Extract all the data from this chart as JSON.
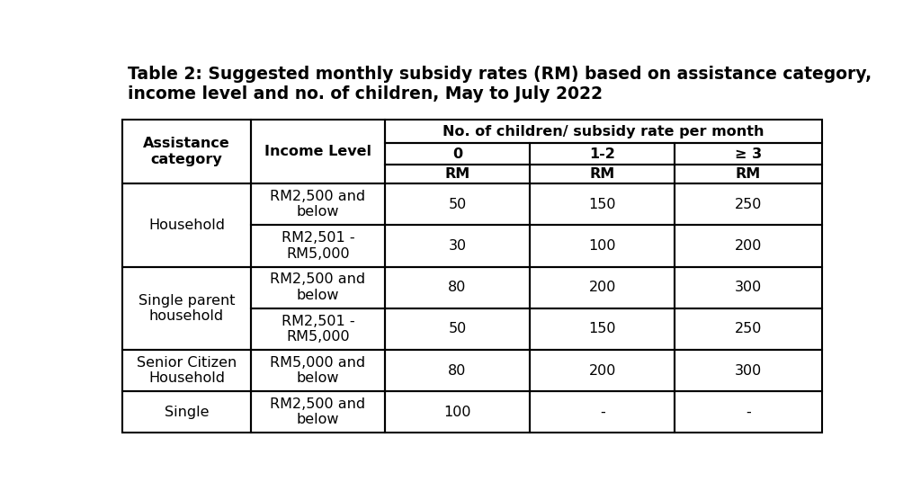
{
  "title_line1": "Table 2: Suggested monthly subsidy rates (RM) based on assistance category,",
  "title_line2": "income level and no. of children, May to July 2022",
  "title_fontsize": 13.5,
  "rows": [
    [
      "Household",
      "RM2,500 and\nbelow",
      "50",
      "150",
      "250"
    ],
    [
      "",
      "RM2,501 -\nRM5,000",
      "30",
      "100",
      "200"
    ],
    [
      "Single parent\nhousehold",
      "RM2,500 and\nbelow",
      "80",
      "200",
      "300"
    ],
    [
      "",
      "RM2,501 -\nRM5,000",
      "50",
      "150",
      "250"
    ],
    [
      "Senior Citizen\nHousehold",
      "RM5,000 and\nbelow",
      "80",
      "200",
      "300"
    ],
    [
      "Single",
      "RM2,500 and\nbelow",
      "100",
      "-",
      "-"
    ]
  ],
  "background_color": "#ffffff",
  "border_color": "#000000",
  "font_color": "#000000",
  "cell_fontsize": 11.5,
  "header_fontsize": 11.5
}
